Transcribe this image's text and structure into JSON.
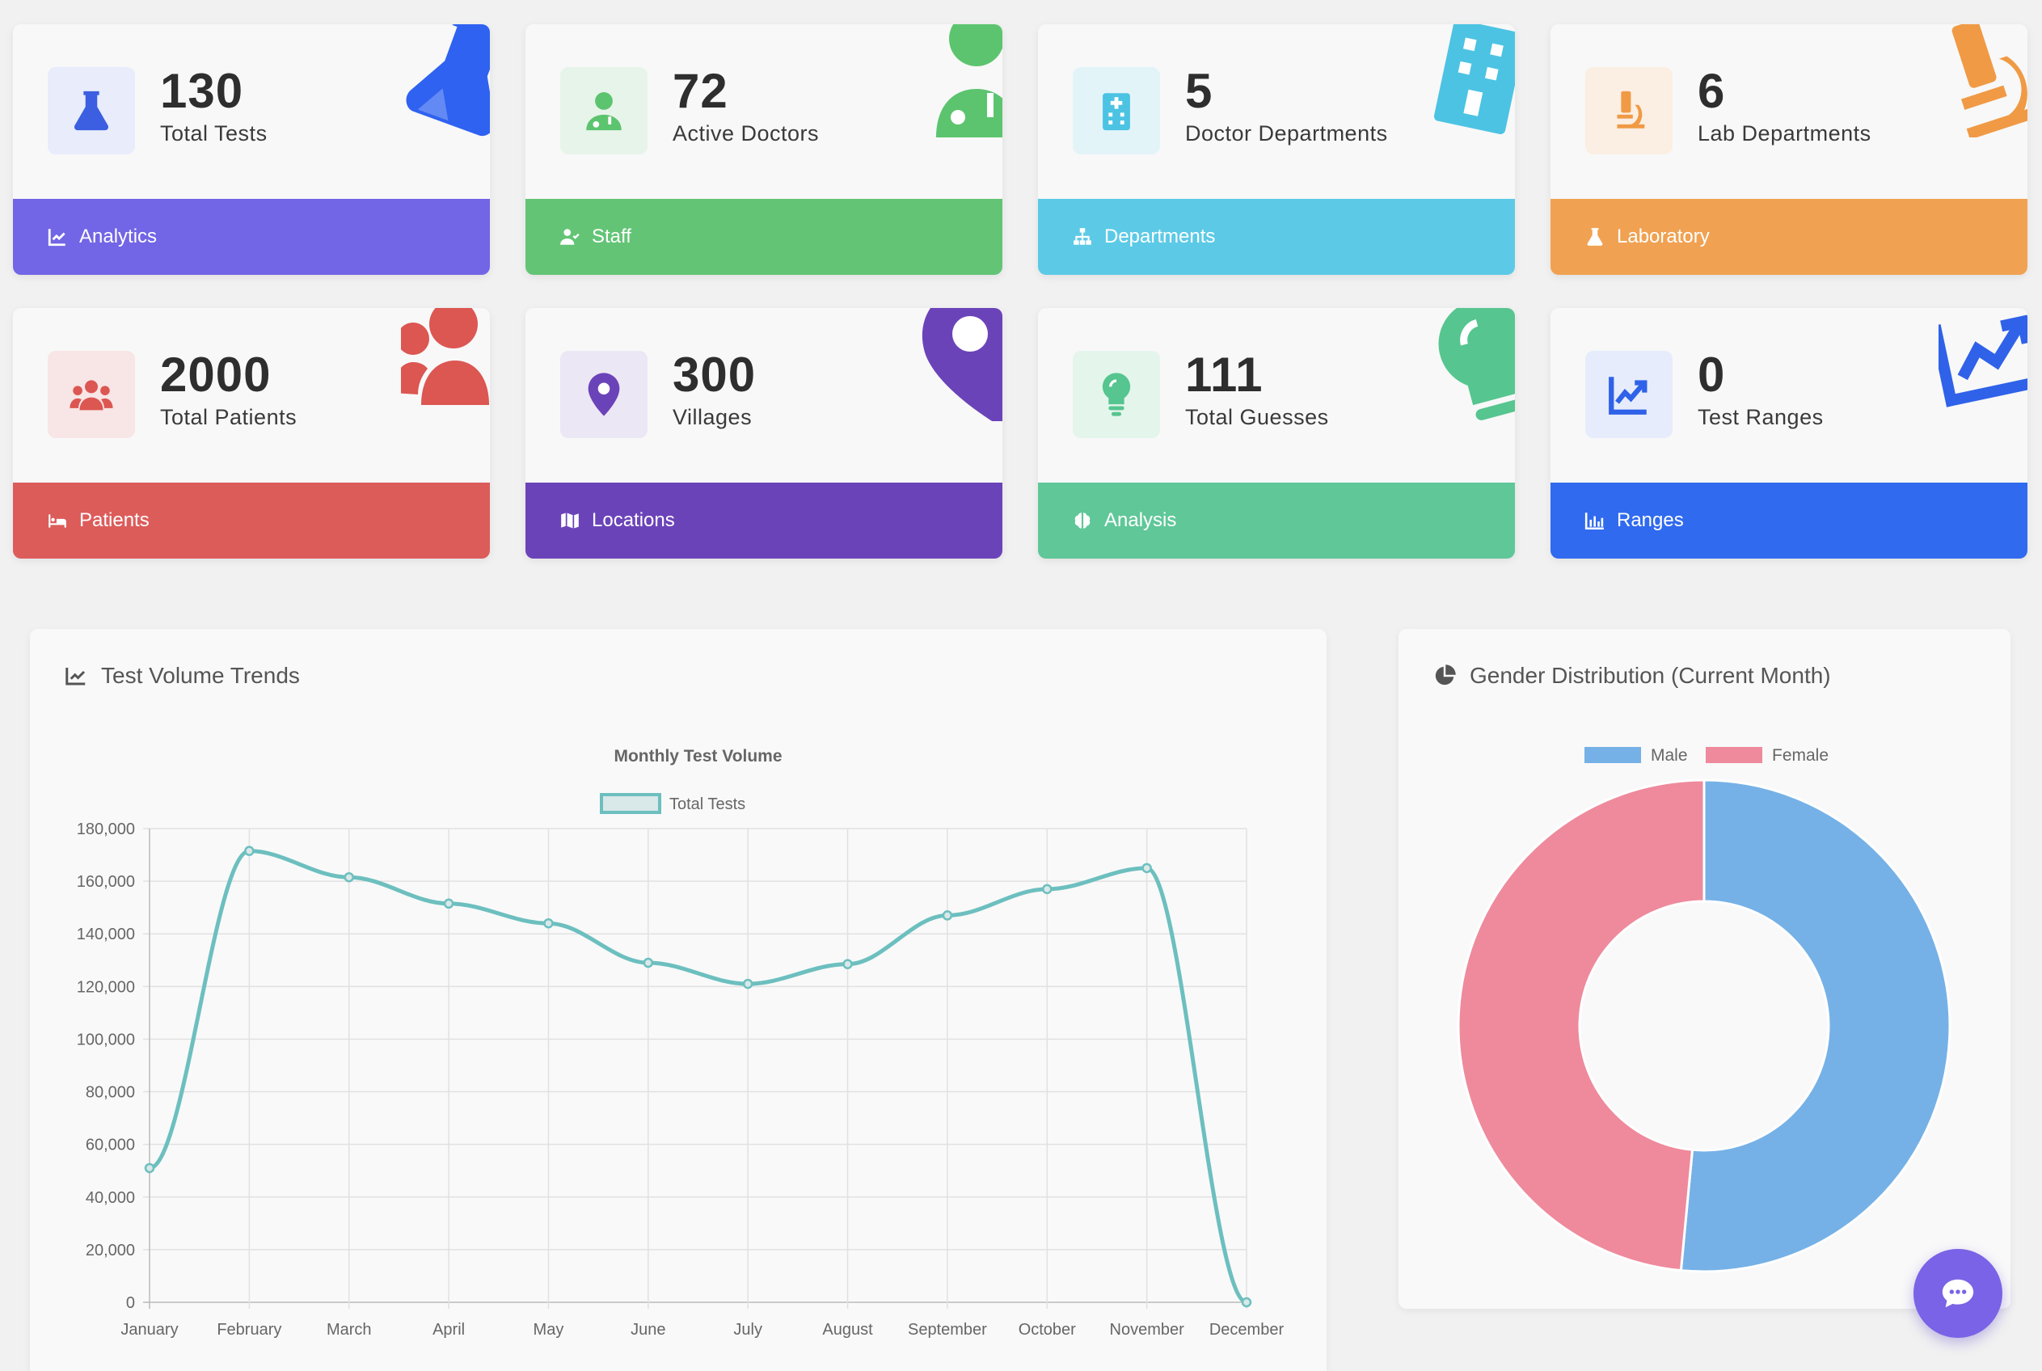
{
  "cards": [
    {
      "value": "130",
      "label": "Total Tests",
      "footer": "Analytics",
      "footer_color": "#7265e6",
      "icon_bg": "#e8ecfb",
      "icon_color": "#3b5fe0",
      "deco_color": "#2f62f0"
    },
    {
      "value": "72",
      "label": "Active Doctors",
      "footer": "Staff",
      "footer_color": "#63c476",
      "icon_bg": "#e7f4ea",
      "icon_color": "#5cc46e",
      "deco_color": "#5cc46e"
    },
    {
      "value": "5",
      "label": "Doctor Departments",
      "footer": "Departments",
      "footer_color": "#5ccae6",
      "icon_bg": "#e3f4f9",
      "icon_color": "#4cc3e3",
      "deco_color": "#4cc3e3"
    },
    {
      "value": "6",
      "label": "Lab Departments",
      "footer": "Laboratory",
      "footer_color": "#f0a252",
      "icon_bg": "#fbeee2",
      "icon_color": "#f09a45",
      "deco_color": "#f09a45"
    },
    {
      "value": "2000",
      "label": "Total Patients",
      "footer": "Patients",
      "footer_color": "#dc5c5a",
      "icon_bg": "#f8e5e5",
      "icon_color": "#dc5652",
      "deco_color": "#dc5652"
    },
    {
      "value": "300",
      "label": "Villages",
      "footer": "Locations",
      "footer_color": "#6b43b9",
      "icon_bg": "#ece7f4",
      "icon_color": "#6b43b9",
      "deco_color": "#6b43b9"
    },
    {
      "value": "111",
      "label": "Total Guesses",
      "footer": "Analysis",
      "footer_color": "#5fc798",
      "icon_bg": "#e4f5ec",
      "icon_color": "#56c58f",
      "deco_color": "#56c58f"
    },
    {
      "value": "0",
      "label": "Test Ranges",
      "footer": "Ranges",
      "footer_color": "#306aef",
      "icon_bg": "#e6ecfb",
      "icon_color": "#2f62e8",
      "deco_color": "#2f62e8"
    }
  ],
  "trend_panel": {
    "title": "Test Volume Trends"
  },
  "gender_panel": {
    "title": "Gender Distribution (Current Month)"
  },
  "chart_data": [
    {
      "type": "line",
      "title": "Monthly Test Volume",
      "categories": [
        "January",
        "February",
        "March",
        "April",
        "May",
        "June",
        "July",
        "August",
        "September",
        "October",
        "November",
        "December"
      ],
      "series": [
        {
          "name": "Total Tests",
          "color": "#6dbfbf",
          "values": [
            51000,
            171500,
            161500,
            151500,
            144000,
            129000,
            121000,
            128500,
            147000,
            157000,
            165000,
            0
          ]
        }
      ],
      "ylim": [
        0,
        180000
      ],
      "yticks": [
        "0",
        "20,000",
        "40,000",
        "60,000",
        "80,000",
        "100,000",
        "120,000",
        "140,000",
        "160,000",
        "180,000"
      ],
      "grid": true,
      "legend": "top"
    },
    {
      "type": "pie",
      "variant": "doughnut",
      "labels": [
        "Male",
        "Female"
      ],
      "values": [
        51.5,
        48.5
      ],
      "colors": [
        "#75b1e6",
        "#ee8a9c"
      ],
      "legend": "top"
    }
  ]
}
